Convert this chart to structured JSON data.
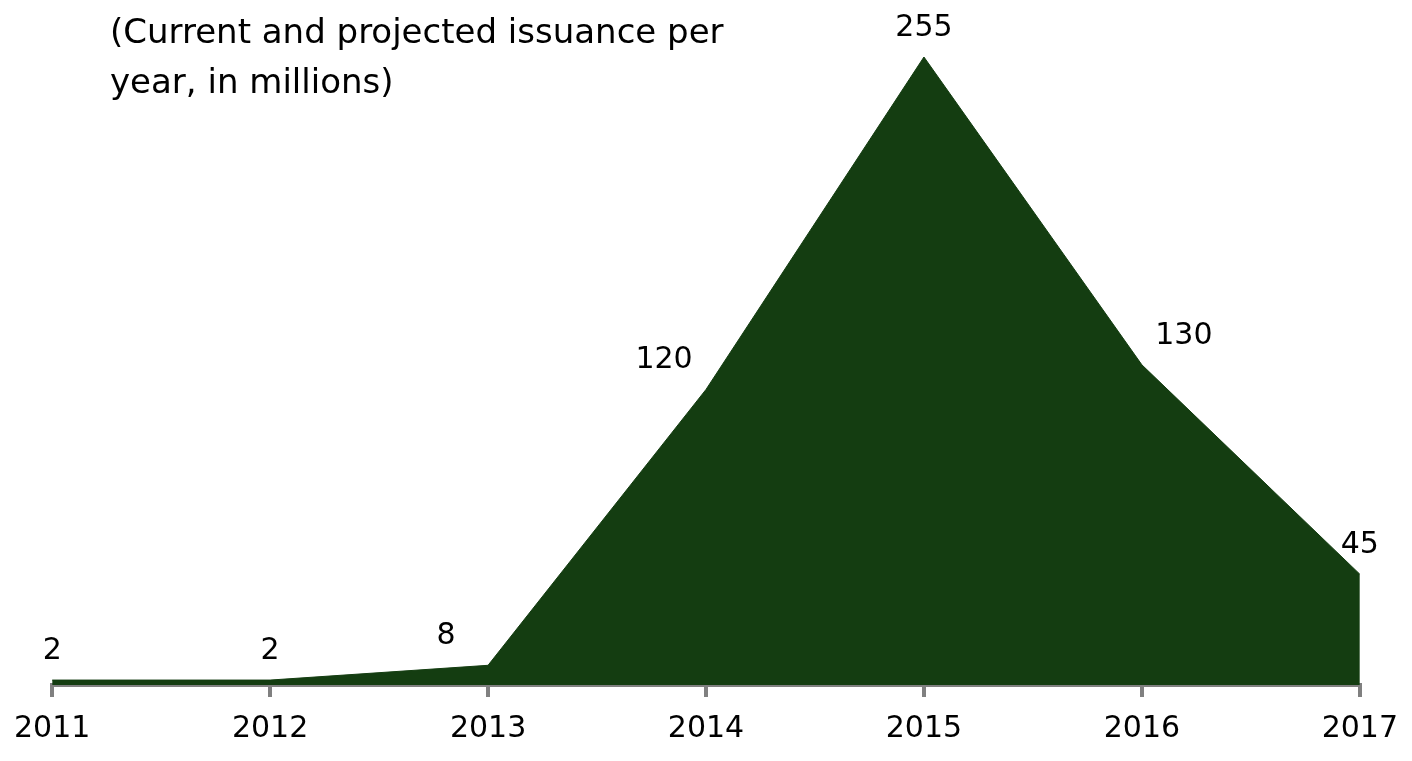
{
  "chart_data": {
    "type": "area",
    "title": "(Current and projected issuance per year, in millions)",
    "categories": [
      "2011",
      "2012",
      "2013",
      "2014",
      "2015",
      "2016",
      "2017"
    ],
    "values": [
      2,
      2,
      8,
      120,
      255,
      130,
      45
    ],
    "color": "#143d11",
    "data_labels": true,
    "grid": false,
    "legend": false
  }
}
